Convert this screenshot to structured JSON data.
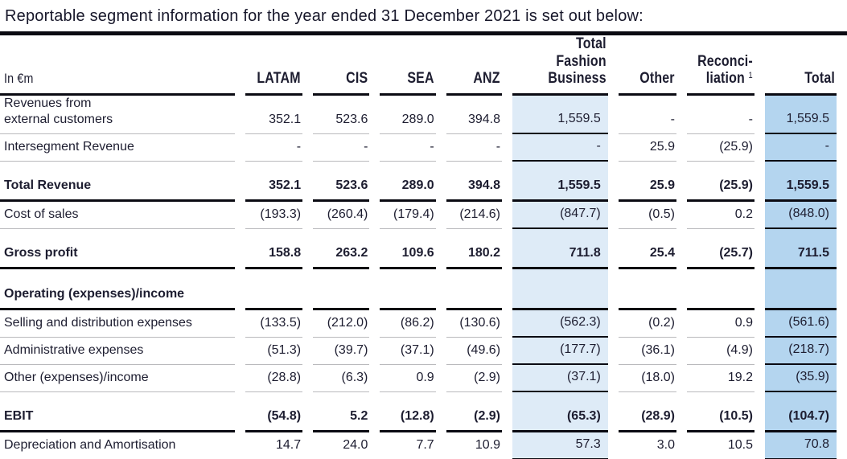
{
  "title": "Reportable segment information for the year ended 31 December 2021 is set out below:",
  "colors": {
    "accent_light_blue": "#deebf7",
    "accent_dark_blue": "#b4d5ef",
    "rule_black": "#0a0a12",
    "rule_gray": "#b9b9bc",
    "text": "#1d1d30"
  },
  "table": {
    "unit_label": "In €m",
    "columns": [
      {
        "key": "latam",
        "label": "LATAM"
      },
      {
        "key": "cis",
        "label": "CIS"
      },
      {
        "key": "sea",
        "label": "SEA"
      },
      {
        "key": "anz",
        "label": "ANZ"
      },
      {
        "key": "tfb",
        "label": "Total Fashion\nBusiness",
        "highlight": "light"
      },
      {
        "key": "other",
        "label": "Other"
      },
      {
        "key": "recon",
        "label": "Reconci-\nliation",
        "footnote": "1"
      },
      {
        "key": "total",
        "label": "Total",
        "highlight": "dark"
      }
    ],
    "rows": [
      {
        "type": "data",
        "label": "Revenues from\nexternal customers",
        "values": [
          "352.1",
          "523.6",
          "289.0",
          "394.8",
          "1,559.5",
          "-",
          "-",
          "1,559.5"
        ]
      },
      {
        "type": "data",
        "label": "Intersegment Revenue",
        "values": [
          "-",
          "-",
          "-",
          "-",
          "-",
          "25.9",
          "(25.9)",
          "-"
        ]
      },
      {
        "type": "spacer"
      },
      {
        "type": "total",
        "label": "Total Revenue",
        "values": [
          "352.1",
          "523.6",
          "289.0",
          "394.8",
          "1,559.5",
          "25.9",
          "(25.9)",
          "1,559.5"
        ]
      },
      {
        "type": "data",
        "label": "Cost of sales",
        "values": [
          "(193.3)",
          "(260.4)",
          "(179.4)",
          "(214.6)",
          "(847.7)",
          "(0.5)",
          "0.2",
          "(848.0)"
        ]
      },
      {
        "type": "spacer"
      },
      {
        "type": "total",
        "label": "Gross profit",
        "values": [
          "158.8",
          "263.2",
          "109.6",
          "180.2",
          "711.8",
          "25.4",
          "(25.7)",
          "711.5"
        ]
      },
      {
        "type": "spacer"
      },
      {
        "type": "section",
        "label": "Operating (expenses)/income",
        "values": [
          "",
          "",
          "",
          "",
          "",
          "",
          "",
          ""
        ]
      },
      {
        "type": "data",
        "label": "Selling and distribution expenses",
        "values": [
          "(133.5)",
          "(212.0)",
          "(86.2)",
          "(130.6)",
          "(562.3)",
          "(0.2)",
          "0.9",
          "(561.6)"
        ]
      },
      {
        "type": "data",
        "label": "Administrative expenses",
        "values": [
          "(51.3)",
          "(39.7)",
          "(37.1)",
          "(49.6)",
          "(177.7)",
          "(36.1)",
          "(4.9)",
          "(218.7)"
        ]
      },
      {
        "type": "data",
        "label": "Other (expenses)/income",
        "values": [
          "(28.8)",
          "(6.3)",
          "0.9",
          "(2.9)",
          "(37.1)",
          "(18.0)",
          "19.2",
          "(35.9)"
        ]
      },
      {
        "type": "spacer"
      },
      {
        "type": "total",
        "label": "EBIT",
        "values": [
          "(54.8)",
          "5.2",
          "(12.8)",
          "(2.9)",
          "(65.3)",
          "(28.9)",
          "(10.5)",
          "(104.7)"
        ]
      },
      {
        "type": "data",
        "label": "Depreciation and Amortisation",
        "values": [
          "14.7",
          "24.0",
          "7.7",
          "10.9",
          "57.3",
          "3.0",
          "10.5",
          "70.8"
        ]
      },
      {
        "type": "tail"
      }
    ]
  }
}
